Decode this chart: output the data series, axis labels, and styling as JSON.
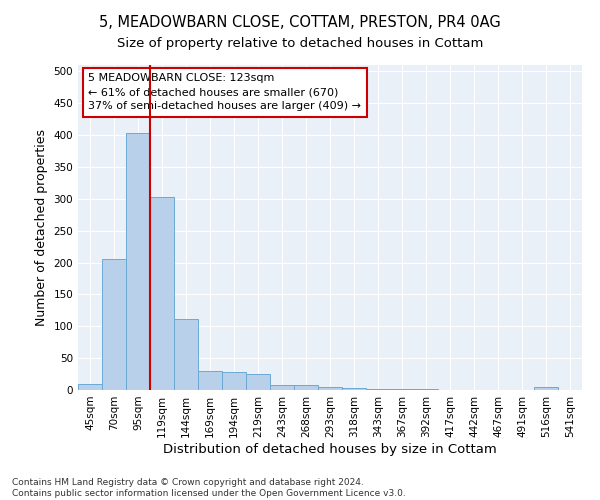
{
  "title1": "5, MEADOWBARN CLOSE, COTTAM, PRESTON, PR4 0AG",
  "title2": "Size of property relative to detached houses in Cottam",
  "xlabel": "Distribution of detached houses by size in Cottam",
  "ylabel": "Number of detached properties",
  "bar_labels": [
    "45sqm",
    "70sqm",
    "95sqm",
    "119sqm",
    "144sqm",
    "169sqm",
    "194sqm",
    "219sqm",
    "243sqm",
    "268sqm",
    "293sqm",
    "318sqm",
    "343sqm",
    "367sqm",
    "392sqm",
    "417sqm",
    "442sqm",
    "467sqm",
    "491sqm",
    "516sqm",
    "541sqm"
  ],
  "bar_values": [
    10,
    205,
    403,
    303,
    112,
    30,
    28,
    25,
    8,
    8,
    5,
    3,
    2,
    2,
    2,
    0,
    0,
    0,
    0,
    5,
    0
  ],
  "bar_color": "#b8d0ea",
  "bar_edge_color": "#6aaad4",
  "vline_x_idx": 3,
  "vline_color": "#cc0000",
  "annotation_line1": "5 MEADOWBARN CLOSE: 123sqm",
  "annotation_line2": "← 61% of detached houses are smaller (670)",
  "annotation_line3": "37% of semi-detached houses are larger (409) →",
  "annotation_boxcolor": "white",
  "annotation_edgecolor": "#cc0000",
  "ylim": [
    0,
    510
  ],
  "yticks": [
    0,
    50,
    100,
    150,
    200,
    250,
    300,
    350,
    400,
    450,
    500
  ],
  "footer": "Contains HM Land Registry data © Crown copyright and database right 2024.\nContains public sector information licensed under the Open Government Licence v3.0.",
  "bg_color": "#eaf0f8",
  "grid_color": "#ffffff",
  "title1_fontsize": 10.5,
  "title2_fontsize": 9.5,
  "annotation_fontsize": 8,
  "tick_fontsize": 7.5,
  "ylabel_fontsize": 9,
  "xlabel_fontsize": 9.5,
  "footer_fontsize": 6.5
}
